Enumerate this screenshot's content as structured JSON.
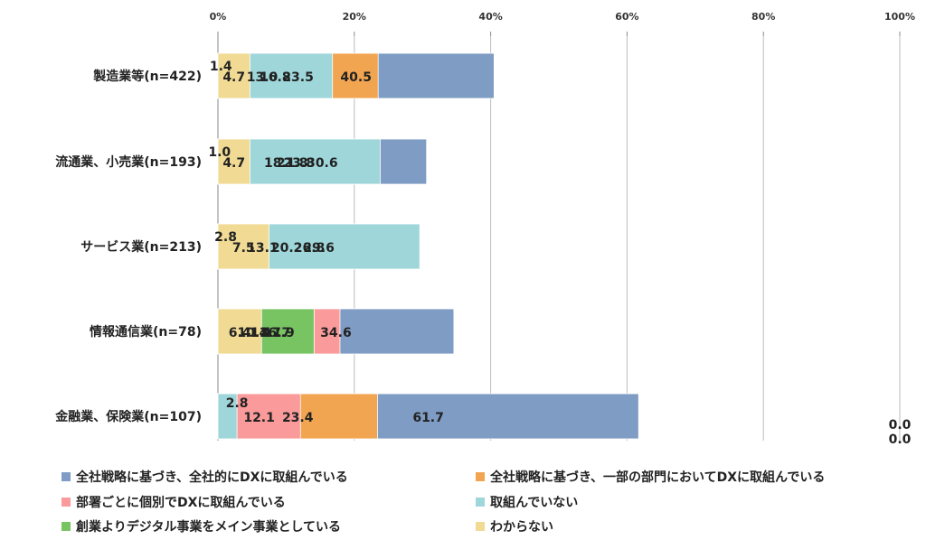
{
  "chart_data": {
    "type": "bar",
    "orientation": "horizontal",
    "stacked": true,
    "categories": [
      "製造業等(n=422)",
      "流通業、小売業(n=193)",
      "サービス業(n=213)",
      "情報通信業(n=78)",
      "金融業、保険業(n=107)"
    ],
    "x_ticks": [
      "0%",
      "20%",
      "40%",
      "60%",
      "80%",
      "100%"
    ],
    "xlim": [
      0,
      100
    ],
    "grid": true,
    "legend_position": "bottom",
    "series": [
      {
        "name": "全社戦略に基づき、全社的にDXに取組んでいる",
        "color": "#7f9cc4",
        "values": [
          40.5,
          30.6,
          26.8,
          34.6,
          61.7
        ],
        "labels": [
          "40.5",
          "30.6",
          "26.8",
          "34.6",
          "61.7"
        ]
      },
      {
        "name": "全社戦略に基づき、一部の部門においてDXに取組んでいる",
        "color": "#f2a550",
        "values": [
          23.5,
          21.8,
          20.2,
          16.7,
          23.4
        ],
        "labels": [
          "23.5",
          "21.8",
          "20.2",
          "16.7",
          "23.4"
        ]
      },
      {
        "name": "部署ごとに個別でDXに取組んでいる",
        "color": "#fa9a9a",
        "values": [
          13.0,
          18.1,
          13.1,
          17.9,
          12.1
        ],
        "labels": [
          "13.0",
          "18.1",
          "13.1",
          "17.9",
          "12.1"
        ]
      },
      {
        "name": "取組んでいない",
        "color": "#9ed6da",
        "values": [
          16.8,
          23.8,
          29.6,
          10.3,
          2.8
        ],
        "labels": [
          "16.8",
          "23.8",
          "29.6",
          "10.3",
          "2.8"
        ]
      },
      {
        "name": "創業よりデジタル事業をメイン事業としている",
        "color": "#78c463",
        "values": [
          1.4,
          1.0,
          2.8,
          14.1,
          0.0
        ],
        "labels": [
          "1.4",
          "1.0",
          "2.8",
          "14.1",
          "0.0"
        ]
      },
      {
        "name": "わからない",
        "color": "#f0da94",
        "values": [
          4.7,
          4.7,
          7.5,
          6.4,
          0.0
        ],
        "labels": [
          "4.7",
          "4.7",
          "7.5",
          "6.4",
          "0.0"
        ]
      }
    ]
  }
}
